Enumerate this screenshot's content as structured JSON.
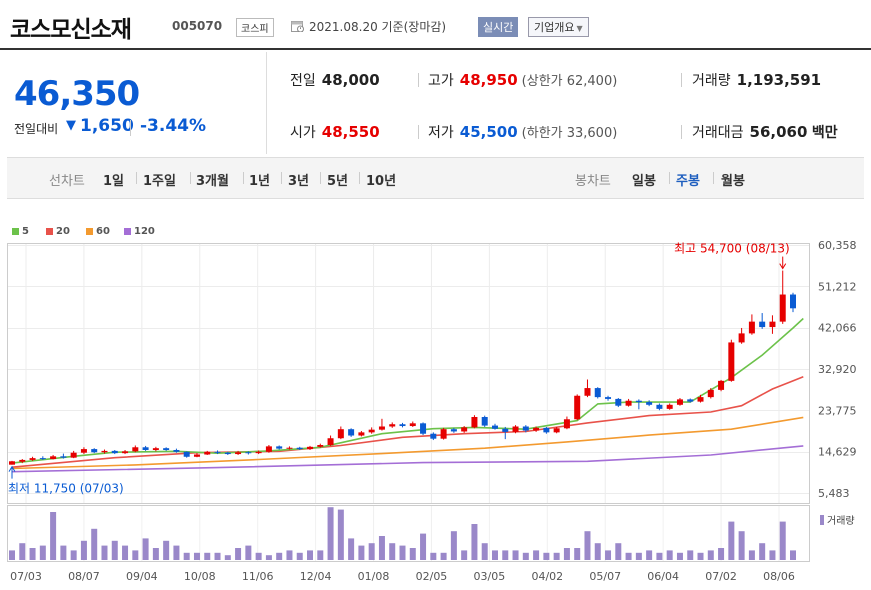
{
  "header": {
    "name": "코스모신소재",
    "code": "005070",
    "market": "코스피",
    "date": "2021.08.20 기준(장마감)",
    "realtime": "실시간",
    "overview": "기업개요"
  },
  "quote": {
    "price": "46,350",
    "change_label": "전일대비",
    "change_value": "1,650",
    "change_pct": "-3.44%",
    "prev_label": "전일",
    "prev": "48,000",
    "high_label": "고가",
    "high": "48,950",
    "upper_limit": "(상한가 62,400)",
    "volume_label": "거래량",
    "volume": "1,193,591",
    "open_label": "시가",
    "open": "48,550",
    "low_label": "저가",
    "low": "45,500",
    "lower_limit": "(하한가 33,600)",
    "amount_label": "거래대금",
    "amount": "56,060",
    "amount_unit": "백만"
  },
  "period_bar": {
    "line_label": "선차트",
    "line_options": [
      "1일",
      "1주일",
      "3개월",
      "1년",
      "3년",
      "5년",
      "10년"
    ],
    "candle_label": "봉차트",
    "candle_options": [
      "일봉",
      "주봉",
      "월봉"
    ],
    "active_candle": "주봉"
  },
  "colors": {
    "up": "#e60000",
    "down": "#0a5bd3",
    "ma5": "#6cc24a",
    "ma20": "#e8524a",
    "ma60": "#f39a2f",
    "ma120": "#a46ed6",
    "volume": "#9a88c9"
  },
  "chart_data": {
    "type": "candlestick",
    "legend": [
      {
        "name": "5",
        "color": "#6cc24a"
      },
      {
        "name": "20",
        "color": "#e8524a"
      },
      {
        "name": "60",
        "color": "#f39a2f"
      },
      {
        "name": "120",
        "color": "#a46ed6"
      }
    ],
    "y_ticks": [
      "60,358",
      "51,212",
      "42,066",
      "32,920",
      "23,775",
      "14,629",
      "5,483"
    ],
    "y_tick_values": [
      60358,
      51212,
      42066,
      32920,
      23775,
      14629,
      5483
    ],
    "ylim": [
      5483,
      60358
    ],
    "x_tick_labels": [
      "07/03",
      "08/07",
      "09/04",
      "10/08",
      "11/06",
      "12/04",
      "01/08",
      "02/05",
      "03/05",
      "04/02",
      "05/07",
      "06/04",
      "07/02",
      "08/06"
    ],
    "max_annotation": "최고 54,700 (08/13)",
    "min_annotation": "최저 11,750 (07/03)",
    "volume_label": "거래량",
    "candles": [
      [
        11750,
        12500,
        11750,
        12600
      ],
      [
        12400,
        12800,
        12100,
        13000
      ],
      [
        12800,
        13200,
        12600,
        13500
      ],
      [
        13200,
        13000,
        12800,
        13600
      ],
      [
        13000,
        13600,
        12900,
        13900
      ],
      [
        13600,
        13300,
        13100,
        14200
      ],
      [
        13300,
        14400,
        13200,
        14800
      ],
      [
        14400,
        15200,
        14100,
        15600
      ],
      [
        15200,
        14500,
        14300,
        15400
      ],
      [
        14500,
        14800,
        14200,
        15100
      ],
      [
        14800,
        14300,
        14100,
        15000
      ],
      [
        14300,
        14700,
        14100,
        15000
      ],
      [
        14700,
        15600,
        14500,
        16000
      ],
      [
        15600,
        15000,
        14800,
        15900
      ],
      [
        15000,
        15400,
        14700,
        15700
      ],
      [
        15400,
        15000,
        14800,
        15600
      ],
      [
        15000,
        14600,
        14400,
        15300
      ],
      [
        14600,
        13500,
        13300,
        14700
      ],
      [
        13500,
        14000,
        13400,
        14300
      ],
      [
        14000,
        14600,
        13900,
        14800
      ],
      [
        14600,
        14400,
        14100,
        14900
      ],
      [
        14400,
        14100,
        13900,
        14600
      ],
      [
        14100,
        14500,
        13900,
        14800
      ],
      [
        14500,
        14300,
        14000,
        14700
      ],
      [
        14300,
        14600,
        14100,
        14900
      ],
      [
        14600,
        15800,
        14400,
        16100
      ],
      [
        15800,
        15300,
        15100,
        16000
      ],
      [
        15300,
        15500,
        15100,
        15800
      ],
      [
        15500,
        15200,
        15000,
        15700
      ],
      [
        15200,
        15700,
        15000,
        15900
      ],
      [
        15700,
        16100,
        15500,
        16400
      ],
      [
        16100,
        17600,
        15900,
        18200
      ],
      [
        17600,
        19600,
        17400,
        20200
      ],
      [
        19600,
        18200,
        17900,
        19800
      ],
      [
        18200,
        18900,
        18000,
        19200
      ],
      [
        18900,
        19500,
        18600,
        20000
      ],
      [
        19500,
        20200,
        19300,
        21900
      ],
      [
        20200,
        20700,
        19900,
        21100
      ],
      [
        20700,
        20300,
        20000,
        21000
      ],
      [
        20300,
        20900,
        20100,
        21300
      ],
      [
        20900,
        18600,
        18300,
        21100
      ],
      [
        18600,
        17500,
        17200,
        18900
      ],
      [
        17500,
        19600,
        17300,
        19900
      ],
      [
        19600,
        19100,
        18800,
        19900
      ],
      [
        19100,
        20000,
        18800,
        20300
      ],
      [
        20000,
        22300,
        19800,
        22700
      ],
      [
        22300,
        20400,
        20100,
        22600
      ],
      [
        20400,
        19700,
        19500,
        20800
      ],
      [
        19700,
        19000,
        17400,
        20100
      ],
      [
        19000,
        20200,
        18700,
        20500
      ],
      [
        20200,
        19300,
        18900,
        20500
      ],
      [
        19300,
        19900,
        19000,
        20200
      ],
      [
        19900,
        18900,
        18600,
        20100
      ],
      [
        18900,
        19800,
        18700,
        20100
      ],
      [
        19800,
        21800,
        19600,
        22400
      ],
      [
        21800,
        27000,
        21600,
        27300
      ],
      [
        27000,
        28700,
        26700,
        30600
      ],
      [
        28700,
        26700,
        26400,
        28900
      ],
      [
        26700,
        26300,
        25900,
        27000
      ],
      [
        26300,
        24800,
        24500,
        26500
      ],
      [
        24800,
        25900,
        24600,
        26300
      ],
      [
        25900,
        25600,
        24000,
        26200
      ],
      [
        25600,
        25000,
        24700,
        26000
      ],
      [
        25000,
        24100,
        23800,
        25300
      ],
      [
        24100,
        25000,
        23900,
        25300
      ],
      [
        25000,
        26200,
        24800,
        26500
      ],
      [
        26200,
        25700,
        25500,
        26400
      ],
      [
        25700,
        26700,
        25500,
        27200
      ],
      [
        26700,
        28300,
        26400,
        28700
      ],
      [
        28300,
        30300,
        28000,
        30500
      ],
      [
        30300,
        38800,
        30100,
        39400
      ],
      [
        38800,
        40800,
        38500,
        42000
      ],
      [
        40800,
        43400,
        40500,
        45000
      ],
      [
        43400,
        42200,
        41800,
        45300
      ],
      [
        42200,
        43400,
        40700,
        44800
      ],
      [
        43400,
        49400,
        42900,
        54700
      ],
      [
        49400,
        46350,
        45500,
        49800
      ]
    ],
    "ma5_points": [
      [
        0,
        12100
      ],
      [
        6,
        13600
      ],
      [
        10,
        14500
      ],
      [
        16,
        14700
      ],
      [
        20,
        14300
      ],
      [
        25,
        14800
      ],
      [
        30,
        15600
      ],
      [
        36,
        18600
      ],
      [
        41,
        19700
      ],
      [
        45,
        20000
      ],
      [
        50,
        19600
      ],
      [
        55,
        21500
      ],
      [
        57,
        25200
      ],
      [
        60,
        25600
      ],
      [
        66,
        25600
      ],
      [
        70,
        31000
      ],
      [
        73,
        36000
      ],
      [
        76,
        42000
      ],
      [
        77,
        44100
      ]
    ],
    "ma20_points": [
      [
        0,
        11200
      ],
      [
        10,
        13300
      ],
      [
        18,
        14400
      ],
      [
        26,
        14700
      ],
      [
        32,
        16000
      ],
      [
        38,
        17800
      ],
      [
        44,
        18600
      ],
      [
        50,
        19100
      ],
      [
        56,
        21000
      ],
      [
        62,
        22600
      ],
      [
        68,
        23400
      ],
      [
        71,
        24800
      ],
      [
        74,
        28500
      ],
      [
        77,
        31200
      ]
    ],
    "ma60_points": [
      [
        0,
        10900
      ],
      [
        12,
        11700
      ],
      [
        24,
        12900
      ],
      [
        36,
        14200
      ],
      [
        46,
        15400
      ],
      [
        54,
        16800
      ],
      [
        62,
        18300
      ],
      [
        70,
        19600
      ],
      [
        77,
        22200
      ]
    ],
    "ma120_points": [
      [
        0,
        10200
      ],
      [
        20,
        11100
      ],
      [
        40,
        12200
      ],
      [
        56,
        12500
      ],
      [
        68,
        13900
      ],
      [
        77,
        15900
      ]
    ],
    "volumes": [
      0.2,
      0.35,
      0.25,
      0.3,
      1.0,
      0.3,
      0.2,
      0.4,
      0.65,
      0.3,
      0.4,
      0.3,
      0.2,
      0.45,
      0.25,
      0.4,
      0.3,
      0.15,
      0.15,
      0.15,
      0.15,
      0.1,
      0.25,
      0.3,
      0.15,
      0.1,
      0.15,
      0.2,
      0.15,
      0.2,
      0.2,
      1.1,
      1.05,
      0.45,
      0.3,
      0.35,
      0.5,
      0.35,
      0.3,
      0.25,
      0.55,
      0.15,
      0.15,
      0.6,
      0.2,
      0.75,
      0.35,
      0.2,
      0.2,
      0.2,
      0.15,
      0.2,
      0.15,
      0.15,
      0.25,
      0.25,
      0.6,
      0.35,
      0.2,
      0.35,
      0.15,
      0.15,
      0.2,
      0.15,
      0.2,
      0.15,
      0.2,
      0.15,
      0.2,
      0.25,
      0.8,
      0.6,
      0.2,
      0.35,
      0.2,
      0.8,
      0.2
    ]
  }
}
